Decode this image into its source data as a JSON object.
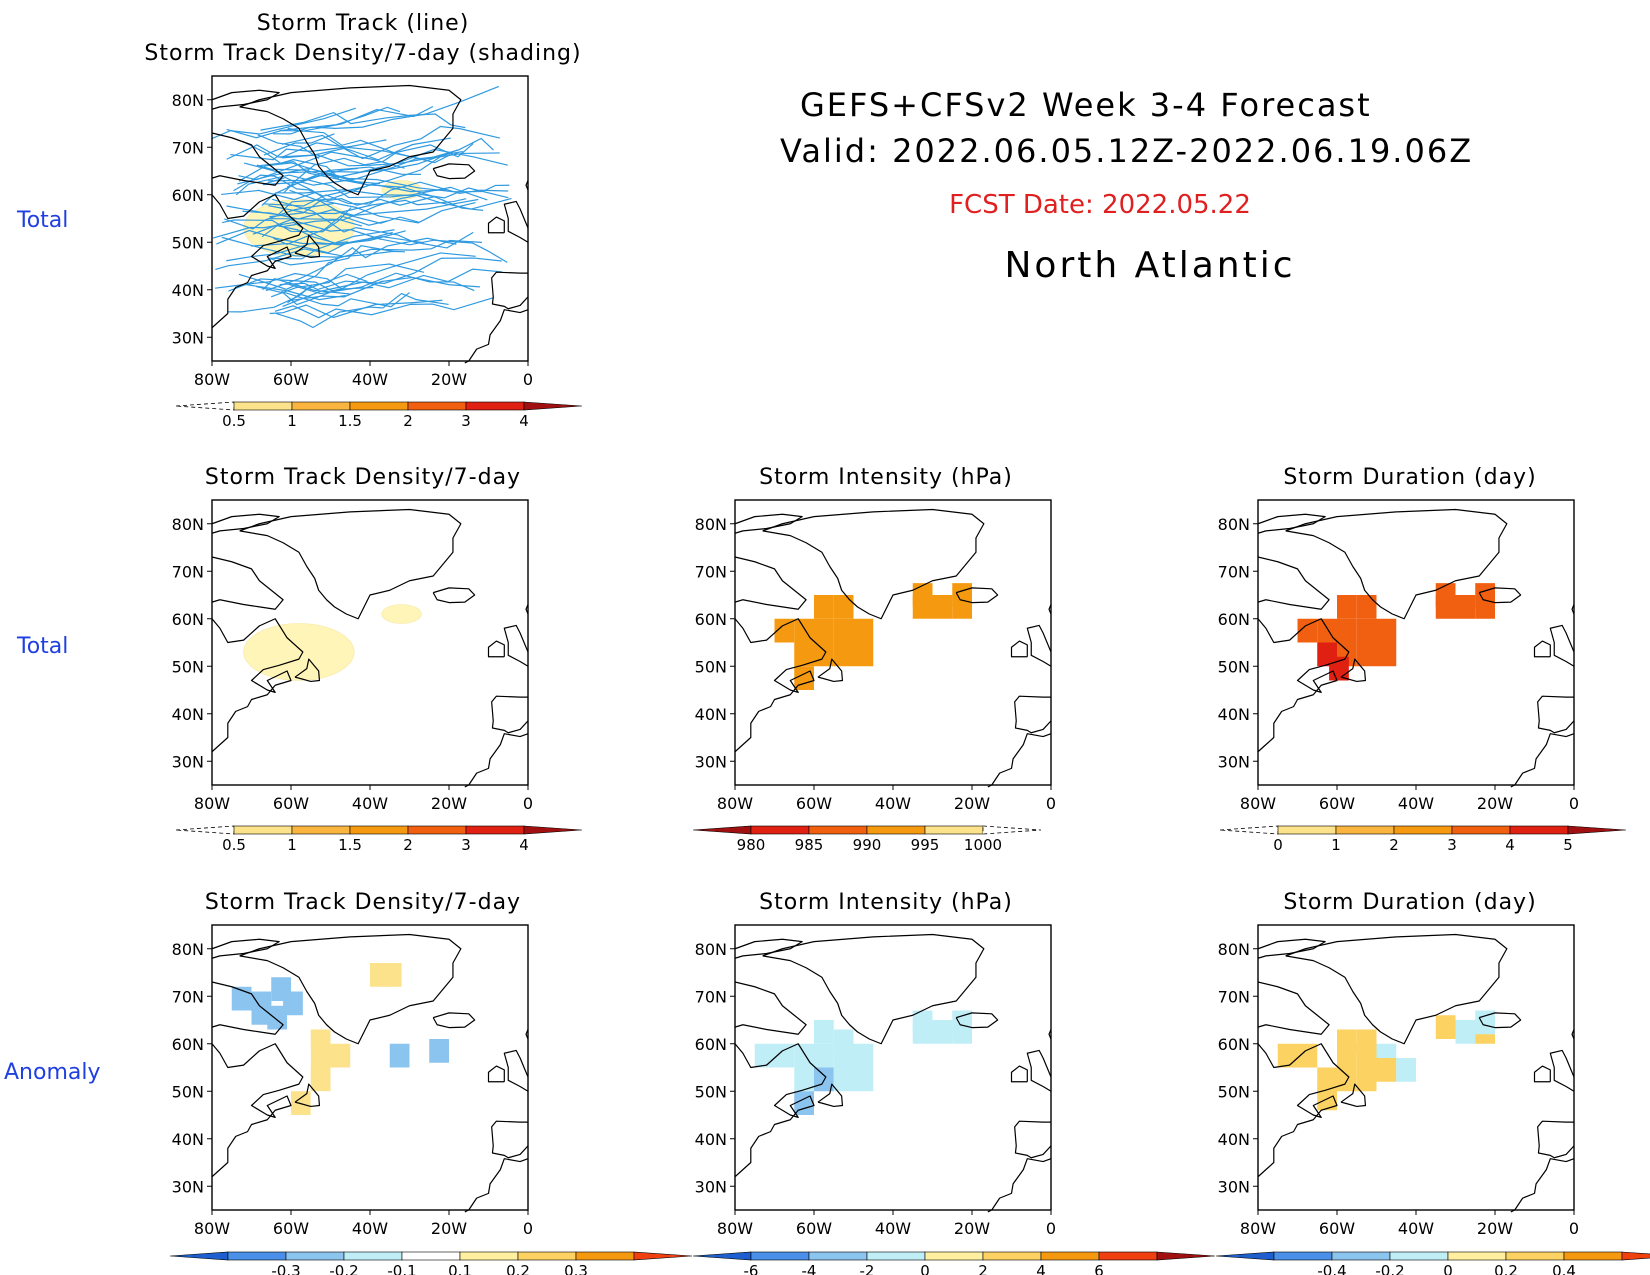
{
  "header": {
    "title_line1": "GEFS+CFSv2 Week 3-4 Forecast",
    "title_line2": "Valid: 2022.06.05.12Z-2022.06.19.06Z",
    "fcst_date": "FCST Date: 2022.05.22",
    "region": "North Atlantic"
  },
  "row_labels": [
    "Total",
    "Total",
    "Anomaly"
  ],
  "axes": {
    "lat_labels": [
      "80N",
      "70N",
      "60N",
      "50N",
      "40N",
      "30N"
    ],
    "lon_labels": [
      "80W",
      "60W",
      "40W",
      "20W",
      "0"
    ]
  },
  "panels": [
    {
      "id": "track",
      "title": [
        "Storm Track (line)",
        "Storm Track Density/7-day (shading)"
      ],
      "colorbar": "density"
    },
    {
      "id": "density_total",
      "title": [
        "Storm Track Density/7-day"
      ],
      "colorbar": "density"
    },
    {
      "id": "intensity_total",
      "title": [
        "Storm Intensity (hPa)"
      ],
      "colorbar": "intensity"
    },
    {
      "id": "duration_total",
      "title": [
        "Storm Duration (day)"
      ],
      "colorbar": "duration"
    },
    {
      "id": "density_anom",
      "title": [
        "Storm Track Density/7-day"
      ],
      "colorbar": "density_anom"
    },
    {
      "id": "intensity_anom",
      "title": [
        "Storm Intensity (hPa)"
      ],
      "colorbar": "intensity_anom"
    },
    {
      "id": "duration_anom",
      "title": [
        "Storm Duration (day)"
      ],
      "colorbar": "duration_anom"
    }
  ],
  "colorbars": {
    "density": {
      "labels": [
        "0.5",
        "1",
        "1.5",
        "2",
        "3",
        "4"
      ],
      "colors": [
        "#fff5b8",
        "#fce28a",
        "#f9b540",
        "#f59a10",
        "#f06010",
        "#e02010",
        "#a01010"
      ],
      "dashed_start": true
    },
    "intensity": {
      "labels": [
        "980",
        "985",
        "990",
        "995",
        "1000"
      ],
      "colors": [
        "#a01010",
        "#e02010",
        "#f06010",
        "#f59a10",
        "#fce28a",
        "#fff5b8"
      ],
      "dashed_end": true
    },
    "duration": {
      "labels": [
        "0",
        "1",
        "2",
        "3",
        "4",
        "5"
      ],
      "colors": [
        "#fff5b8",
        "#fce28a",
        "#f9b540",
        "#f59a10",
        "#f06010",
        "#e02010",
        "#a01010"
      ],
      "dashed_start": true
    },
    "density_anom": {
      "labels": [
        "-0.3",
        "-0.2",
        "-0.1",
        "0.1",
        "0.2",
        "0.3"
      ],
      "colors": [
        "#1e5fd0",
        "#4a90e8",
        "#8cc4f0",
        "#bfeef7",
        "#ffffff",
        "#fff0a0",
        "#fcd262",
        "#f59a10",
        "#f04010"
      ]
    },
    "intensity_anom": {
      "labels": [
        "-6",
        "-4",
        "-2",
        "0",
        "2",
        "4",
        "6"
      ],
      "colors": [
        "#1e5fd0",
        "#4a90e8",
        "#8cc4f0",
        "#bfeef7",
        "#fff0a0",
        "#fcd262",
        "#f59a10",
        "#f04010",
        "#a01010"
      ]
    },
    "duration_anom": {
      "labels": [
        "-0.4",
        "-0.2",
        "0",
        "0.2",
        "0.4"
      ],
      "colors": [
        "#1e5fd0",
        "#4a90e8",
        "#8cc4f0",
        "#bfeef7",
        "#fff0a0",
        "#fcd262",
        "#f59a10",
        "#f04010"
      ]
    }
  },
  "colors": {
    "storm_track_line": "#2f9ae0",
    "coastline": "#000000",
    "fcst_date": "#e02020",
    "row_label": "#1f3fe0"
  }
}
